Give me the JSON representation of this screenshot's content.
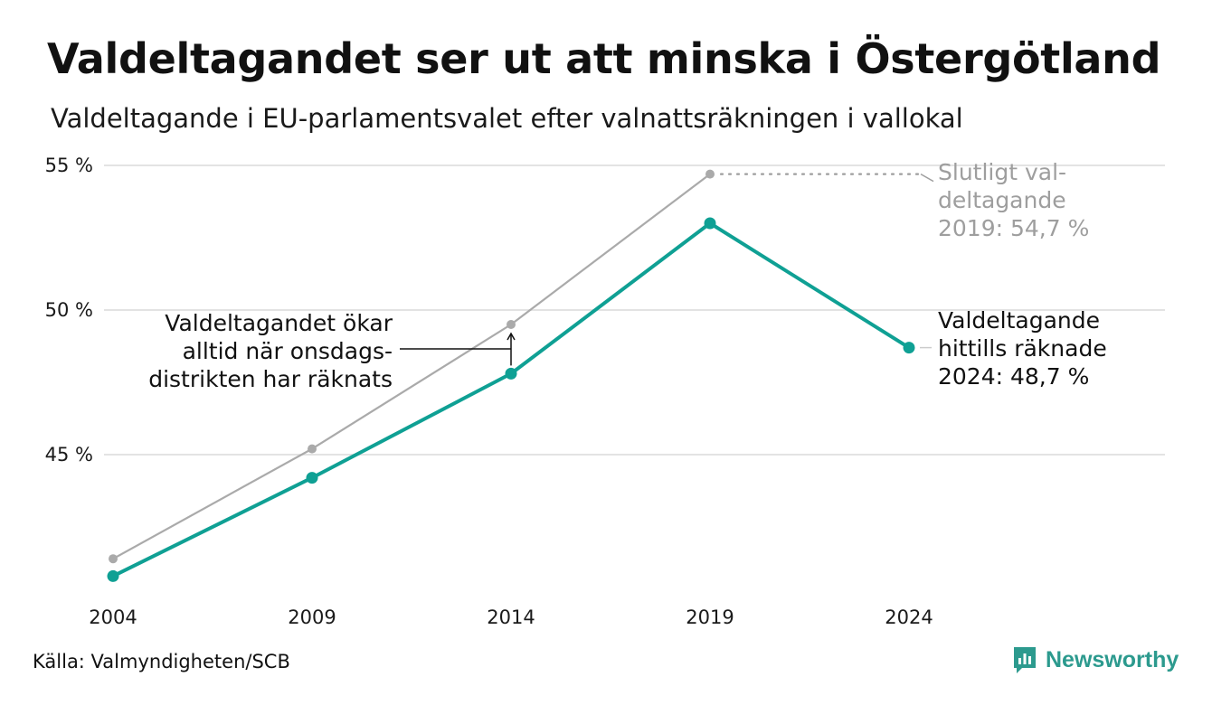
{
  "header": {
    "title": "Valdeltagandet ser ut att minska i Östergötland",
    "subtitle": "Valdeltagande i EU-parlamentsvalet efter valnattsräkningen i vallokal"
  },
  "footer": {
    "source": "Källa: Valmyndigheten/SCB",
    "brand": "Newsworthy"
  },
  "colors": {
    "primary": "#0fa094",
    "secondary": "#aaaaaa",
    "grid": "#e3e3e3",
    "annotation_gray": "#9e9e9e"
  },
  "icons": {
    "logo": "bar-chart-speech-icon"
  },
  "chart_data": {
    "type": "line",
    "x": [
      "2004",
      "2009",
      "2014",
      "2019",
      "2024"
    ],
    "series": [
      {
        "key": "final",
        "values": [
          41.4,
          45.2,
          49.5,
          54.7,
          null
        ],
        "color": "#aaaaaa"
      },
      {
        "key": "counted",
        "values": [
          40.8,
          44.2,
          47.8,
          53.0,
          48.7
        ],
        "color": "#0fa094"
      }
    ],
    "yticks": [
      {
        "value": 45,
        "label": "45 %"
      },
      {
        "value": 50,
        "label": "50 %"
      },
      {
        "value": 55,
        "label": "55 %"
      }
    ],
    "ylim": [
      39.4,
      56.5
    ],
    "grid": true,
    "annotations": {
      "final_2019": [
        "Slutligt val-",
        "deltagande",
        "2019: 54,7 %"
      ],
      "counted_2024": [
        "Valdeltagande",
        "hittills räknade",
        "2024: 48,7 %"
      ],
      "increase_note": [
        "Valdeltagandet ökar",
        "alltid när onsdags-",
        "distrikten har räknats"
      ]
    }
  }
}
